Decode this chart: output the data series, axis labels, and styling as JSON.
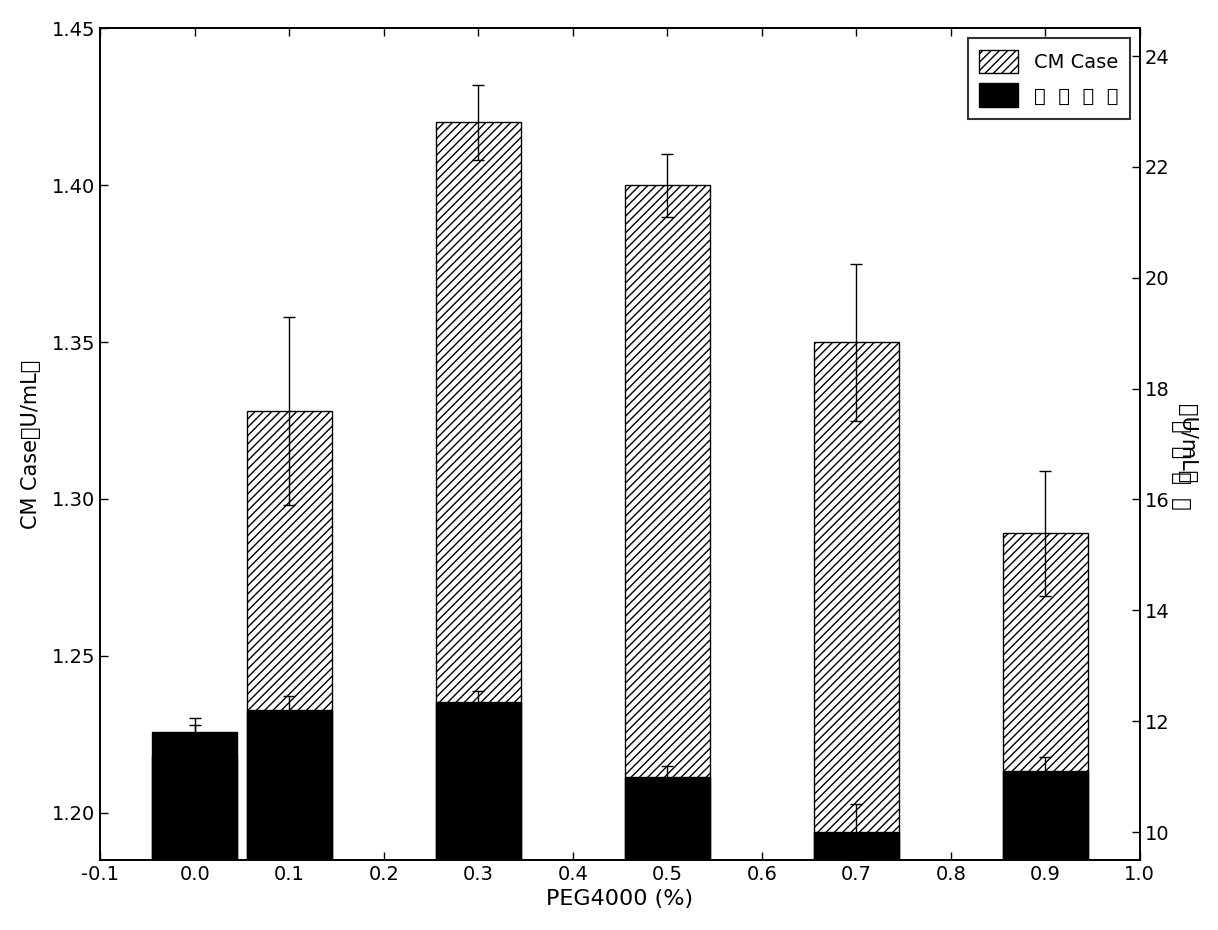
{
  "categories": [
    0.0,
    0.1,
    0.3,
    0.5,
    0.7,
    0.9
  ],
  "cmcase_values": [
    1.218,
    1.328,
    1.42,
    1.4,
    1.35,
    1.289
  ],
  "cmcase_errors": [
    0.01,
    0.03,
    0.012,
    0.01,
    0.025,
    0.02
  ],
  "xylanase_values": [
    11.8,
    12.2,
    12.35,
    11.0,
    10.0,
    11.1
  ],
  "xylanase_errors": [
    0.25,
    0.25,
    0.2,
    0.2,
    0.5,
    0.25
  ],
  "bar_width": 0.09,
  "xlim": [
    -0.1,
    1.0
  ],
  "ylim_left": [
    1.185,
    1.45
  ],
  "ylim_right": [
    9.5,
    24.5
  ],
  "yticks_left": [
    1.2,
    1.25,
    1.3,
    1.35,
    1.4,
    1.45
  ],
  "yticks_right": [
    10,
    12,
    14,
    16,
    18,
    20,
    22,
    24
  ],
  "xlabel": "PEG4000 (%)",
  "ylabel_left": "CM Case（U/mL）",
  "ylabel_right": "（U/mL）",
  "legend_label1": "CM Case",
  "legend_label2": "木  职  糖  醂",
  "hatch_pattern": "////",
  "background_color": "#ffffff",
  "bar_edge_color": "#000000",
  "xylanase_bar_color": "#000000",
  "cmcase_bar_color": "#ffffff",
  "xticks": [
    -0.1,
    0.0,
    0.1,
    0.2,
    0.3,
    0.4,
    0.5,
    0.6,
    0.7,
    0.8,
    0.9,
    1.0
  ],
  "xtick_labels": [
    "-0.1",
    "0.0",
    "0.1",
    "0.2",
    "0.3",
    "0.4",
    "0.5",
    "0.6",
    "0.7",
    "0.8",
    "0.9",
    "1.0"
  ]
}
